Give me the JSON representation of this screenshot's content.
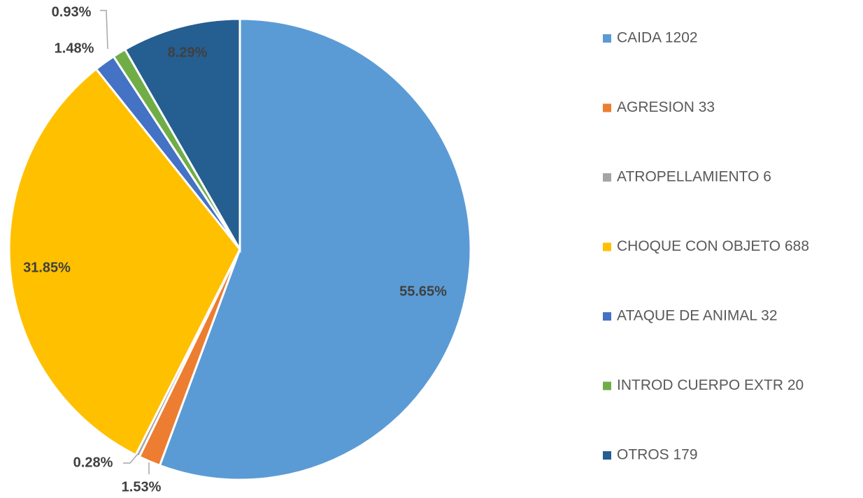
{
  "chart_data": {
    "type": "pie",
    "categories": [
      "CAIDA 1202",
      "AGRESION 33",
      "ATROPELLAMIENTO 6",
      "CHOQUE CON OBJETO 688",
      "ATAQUE DE ANIMAL 32",
      "INTROD CUERPO EXTR 20",
      "OTROS 179"
    ],
    "values": [
      55.65,
      1.53,
      0.28,
      31.85,
      1.48,
      0.93,
      8.29
    ],
    "value_labels": [
      "55.65%",
      "1.53%",
      "0.28%",
      "31.85%",
      "1.48%",
      "0.93%",
      "8.29%"
    ],
    "colors": [
      "#5b9bd5",
      "#ed7d31",
      "#a5a5a5",
      "#ffc000",
      "#4472c4",
      "#70ad47",
      "#255e91"
    ],
    "legend": "right"
  }
}
